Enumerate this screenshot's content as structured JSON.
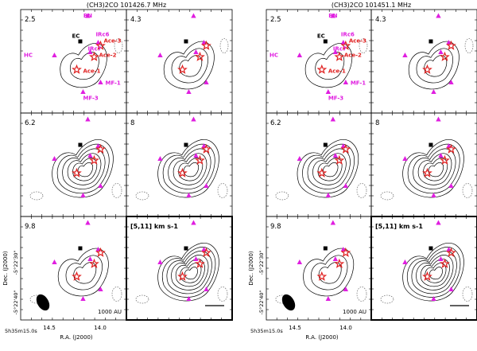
{
  "titles": [
    "(CH3)2CO 101426.7 MHz",
    "(CH3)2CO 101451.1 MHz"
  ],
  "panel_labels": [
    "2.5",
    "4.3",
    "6.2",
    "8",
    "9.8",
    "[5,11] km s-1"
  ],
  "sources": {
    "BN": "BN",
    "EC": "EC",
    "IRc6": "IRc6",
    "IRc7": "IRc7",
    "HC": "HC",
    "MF1": "MF-1",
    "MF3": "MF-3",
    "Ace1": "Ace-1",
    "Ace2": "Ace-2",
    "Ace3": "Ace-3"
  },
  "axes": {
    "ylabel": "Dec. (J2000)",
    "xlabel": "R.A. (J2000)",
    "yticks": [
      "-5°22'30\"",
      "-5°22'40\""
    ],
    "xticks": [
      "5h35m15.0s",
      "14.5",
      "14.0"
    ]
  },
  "scale_bar": "1000 AU",
  "colors": {
    "marker": "#e01ee0",
    "star": "#e02020",
    "contour": "#000000"
  }
}
